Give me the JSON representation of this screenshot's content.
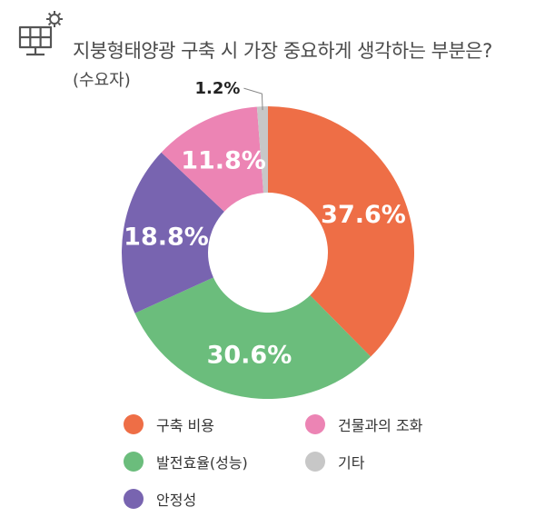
{
  "header": {
    "title": "지붕형태양광 구축 시 가장 중요하게 생각하는 부분은?",
    "subtitle": "(수요자)"
  },
  "icons": {
    "header_icon": "solar-panel-gear-icon"
  },
  "colors": {
    "title_text": "#4a4a4a",
    "label_text": "#ffffff",
    "outside_label_text": "#222222",
    "leader_line": "#888888"
  },
  "chart_data": {
    "type": "pie",
    "donut": true,
    "title": "지붕형태양광 구축 시 가장 중요하게 생각하는 부분은?",
    "subtitle": "(수요자)",
    "legend_position": "bottom",
    "slices": [
      {
        "label": "구축 비용",
        "value": 37.6,
        "display": "37.6%",
        "color": "#ee6e46"
      },
      {
        "label": "발전효율(성능)",
        "value": 30.6,
        "display": "30.6%",
        "color": "#6bbd7c"
      },
      {
        "label": "안정성",
        "value": 18.8,
        "display": "18.8%",
        "color": "#7864b0"
      },
      {
        "label": "건물과의 조화",
        "value": 11.8,
        "display": "11.8%",
        "color": "#ec84b4"
      },
      {
        "label": "기타",
        "value": 1.2,
        "display": "1.2%",
        "color": "#c7c7c7"
      }
    ]
  }
}
